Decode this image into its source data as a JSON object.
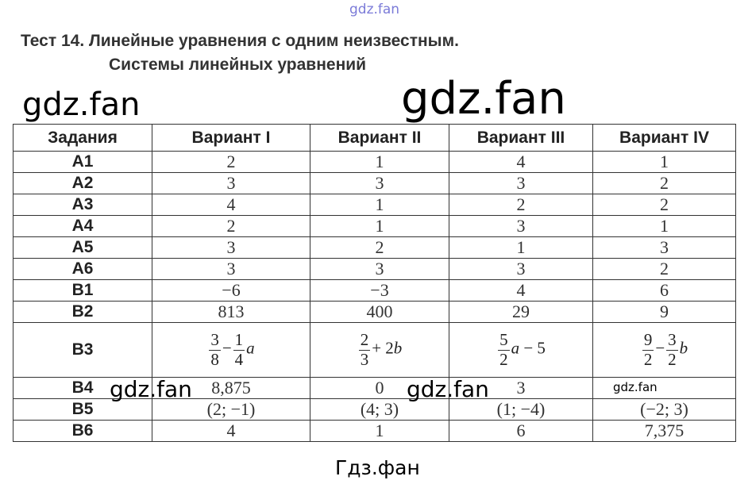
{
  "watermarks": {
    "top": "gdz.fan",
    "left": "gdz.fan",
    "big": "gdz.fan",
    "b4_left": "gdz.fan",
    "b4_mid": "gdz.fan",
    "b4_right": "gdz.fan"
  },
  "title": {
    "line1": "Тест 14. Линейные уравнения с одним неизвестным.",
    "line2": "Системы линейных уравнений"
  },
  "table": {
    "headers": [
      "Задания",
      "Вариант I",
      "Вариант II",
      "Вариант III",
      "Вариант IV"
    ],
    "rows": [
      {
        "task": "A1",
        "values": [
          "2",
          "1",
          "4",
          "1"
        ]
      },
      {
        "task": "A2",
        "values": [
          "3",
          "3",
          "3",
          "2"
        ]
      },
      {
        "task": "A3",
        "values": [
          "4",
          "1",
          "2",
          "2"
        ]
      },
      {
        "task": "A4",
        "values": [
          "2",
          "1",
          "3",
          "1"
        ]
      },
      {
        "task": "A5",
        "values": [
          "3",
          "2",
          "1",
          "3"
        ]
      },
      {
        "task": "A6",
        "values": [
          "3",
          "3",
          "3",
          "2"
        ]
      },
      {
        "task": "B1",
        "values": [
          "−6",
          "−3",
          "4",
          "6"
        ]
      },
      {
        "task": "B2",
        "values": [
          "813",
          "400",
          "29",
          "9"
        ]
      }
    ],
    "b3": {
      "task": "B3",
      "v1": {
        "n1": "3",
        "d1": "8",
        "op": "−",
        "n2": "1",
        "d2": "4",
        "var": "a"
      },
      "v2": {
        "n1": "2",
        "d1": "3",
        "rest": "+ 2",
        "var": "b"
      },
      "v3": {
        "n1": "5",
        "d1": "2",
        "var": "a",
        "rest": "− 5"
      },
      "v4": {
        "n1": "9",
        "d1": "2",
        "op": "−",
        "n2": "3",
        "d2": "2",
        "var": "b"
      }
    },
    "rows2": [
      {
        "task": "B4",
        "values": [
          "8,875",
          "0",
          "3",
          ""
        ]
      },
      {
        "task": "B5",
        "values": [
          "(2; −1)",
          "(4; 3)",
          "(1; −4)",
          "(−2; 3)"
        ]
      },
      {
        "task": "B6",
        "values": [
          "4",
          "1",
          "6",
          "7,375"
        ]
      }
    ]
  },
  "footer": "Гдз.фан"
}
